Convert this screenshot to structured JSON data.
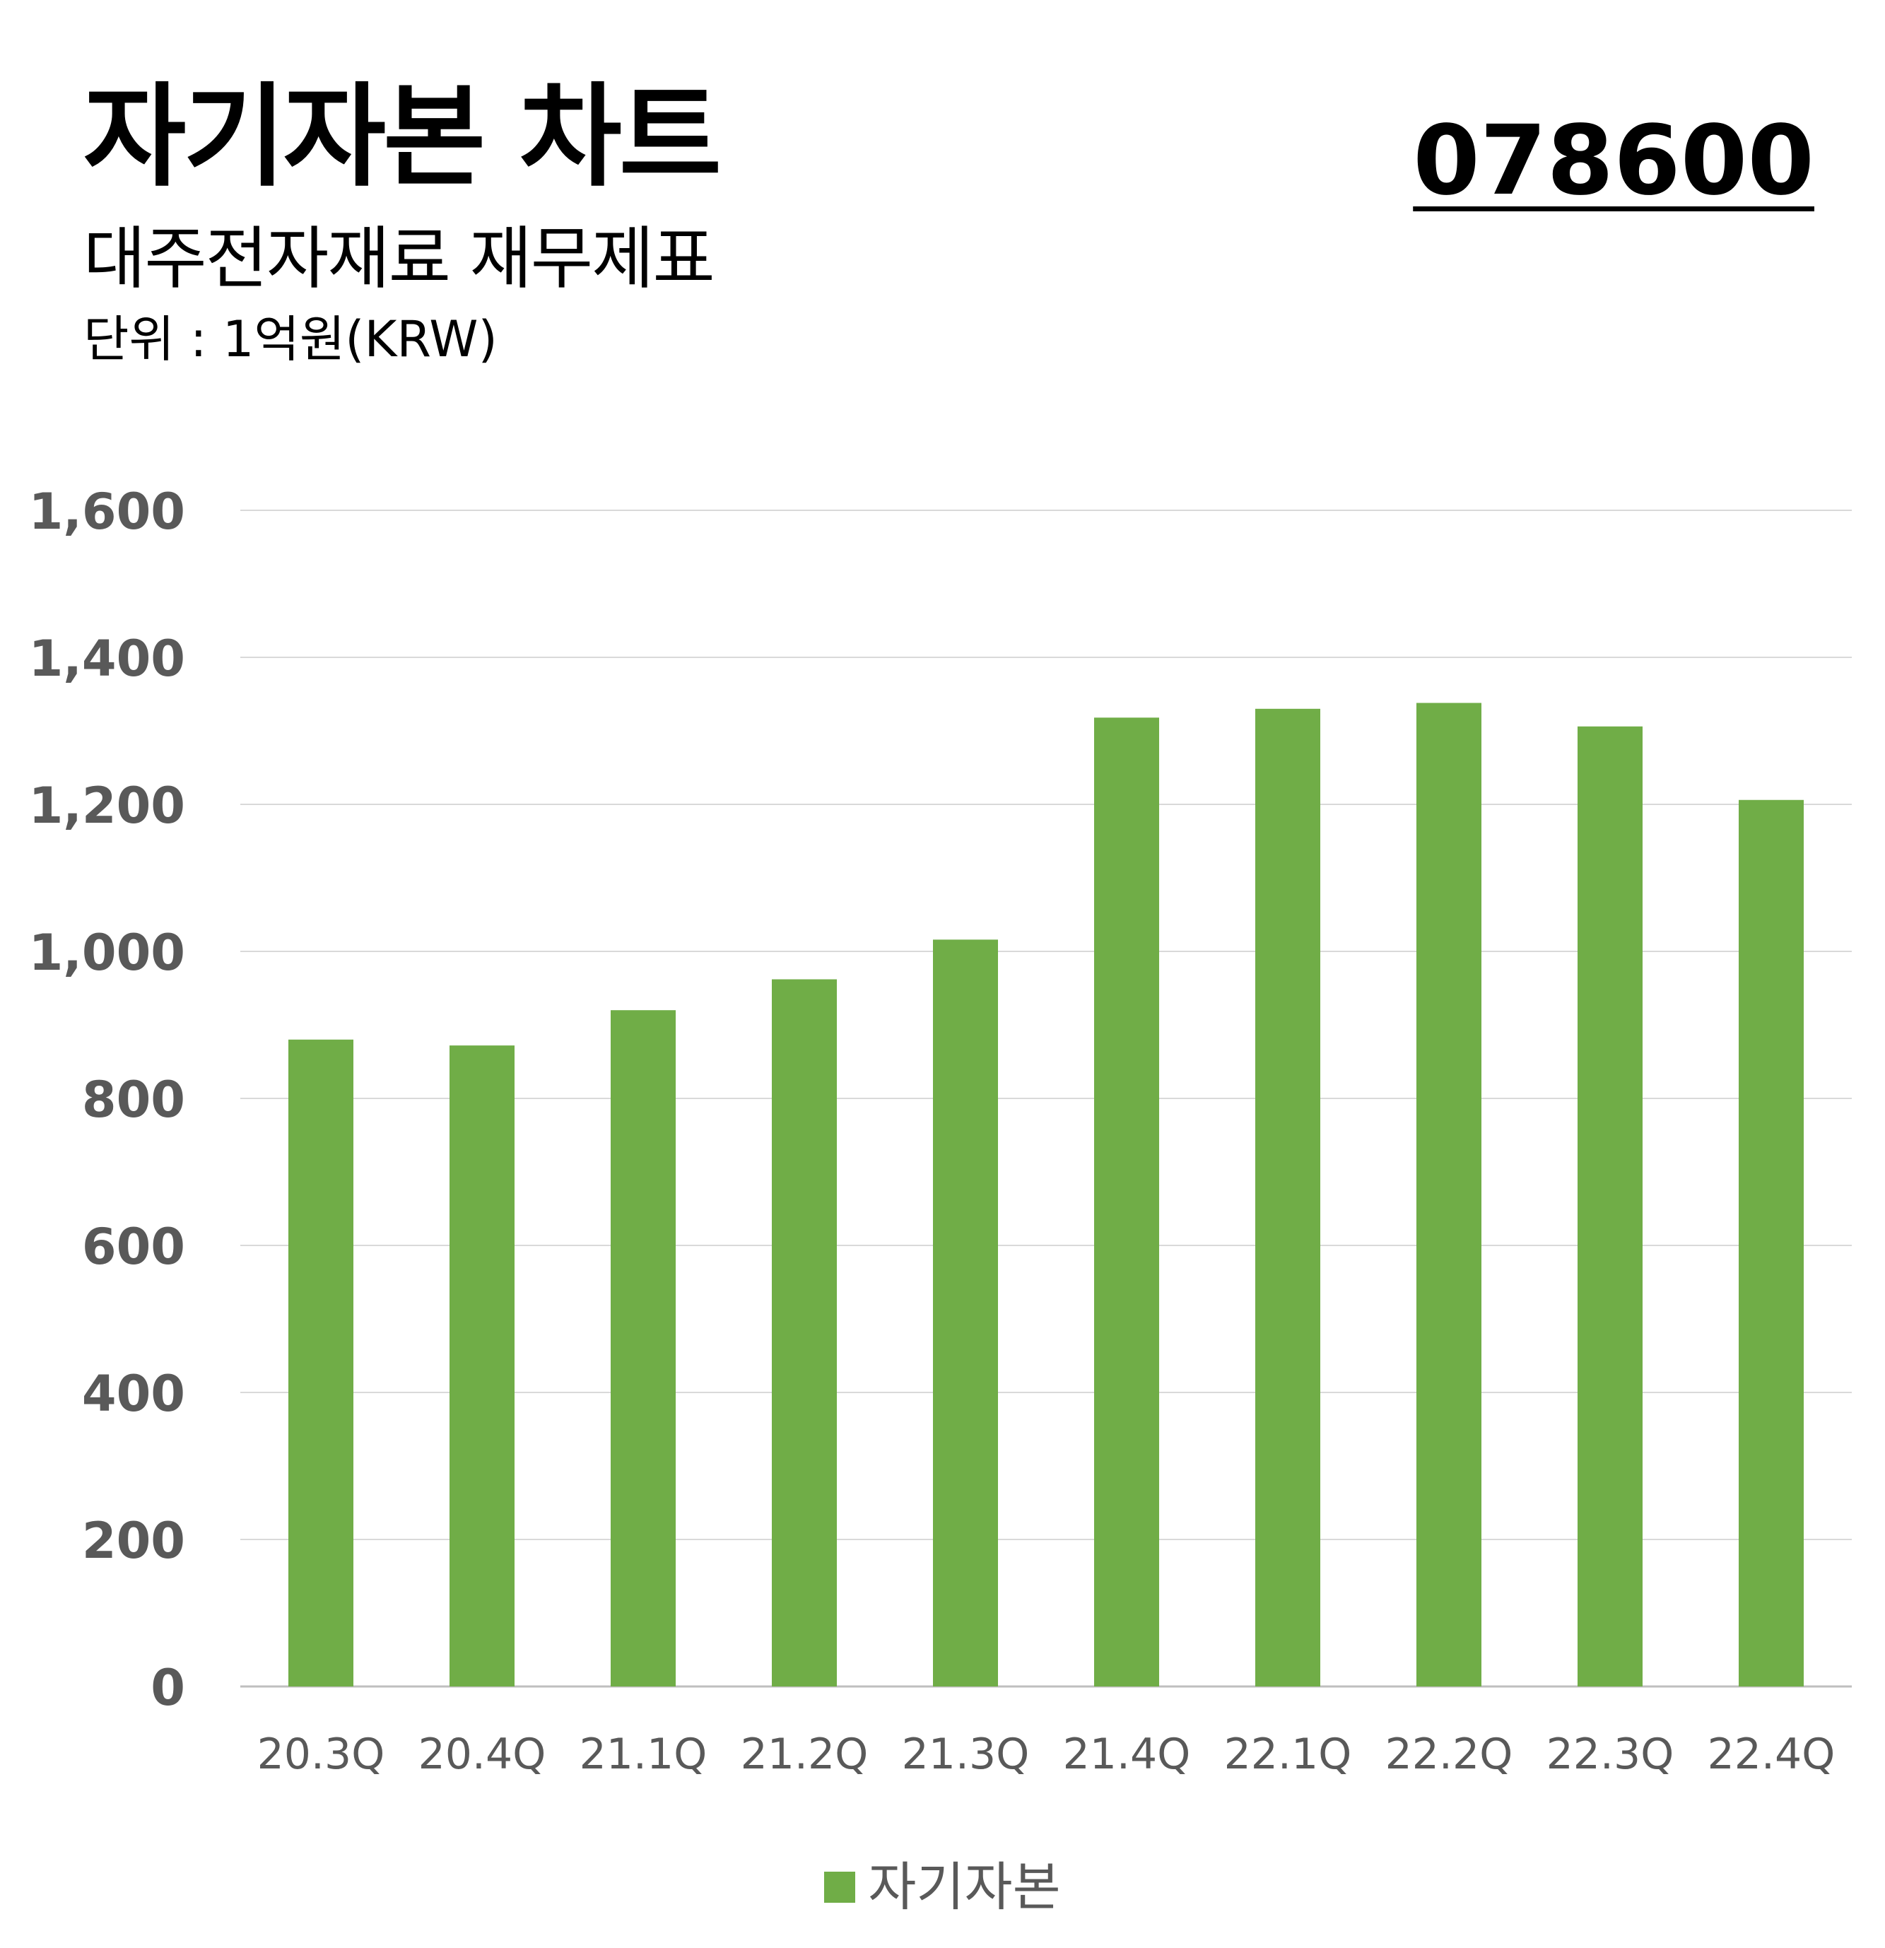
{
  "header": {
    "title": "자기자본 차트",
    "code": "078600",
    "subtitle": "대주전자재료 재무제표",
    "unit": "단위 : 1억원(KRW)"
  },
  "colors": {
    "bar": "#70AD47",
    "grid": "#d9d9d9",
    "axis_text": "#595959"
  },
  "chart_data": {
    "type": "bar",
    "categories": [
      "20.3Q",
      "20.4Q",
      "21.1Q",
      "21.2Q",
      "21.3Q",
      "21.4Q",
      "22.1Q",
      "22.2Q",
      "22.3Q",
      "22.4Q"
    ],
    "series": [
      {
        "name": "자기자본",
        "values": [
          880,
          872,
          920,
          962,
          1016,
          1318,
          1330,
          1338,
          1306,
          1206
        ]
      }
    ],
    "ylim": [
      0,
      1600
    ],
    "yticks": [
      "0",
      "200",
      "400",
      "600",
      "800",
      "1,000",
      "1,200",
      "1,400",
      "1,600"
    ],
    "grid": true,
    "legend": "bottom-center"
  }
}
